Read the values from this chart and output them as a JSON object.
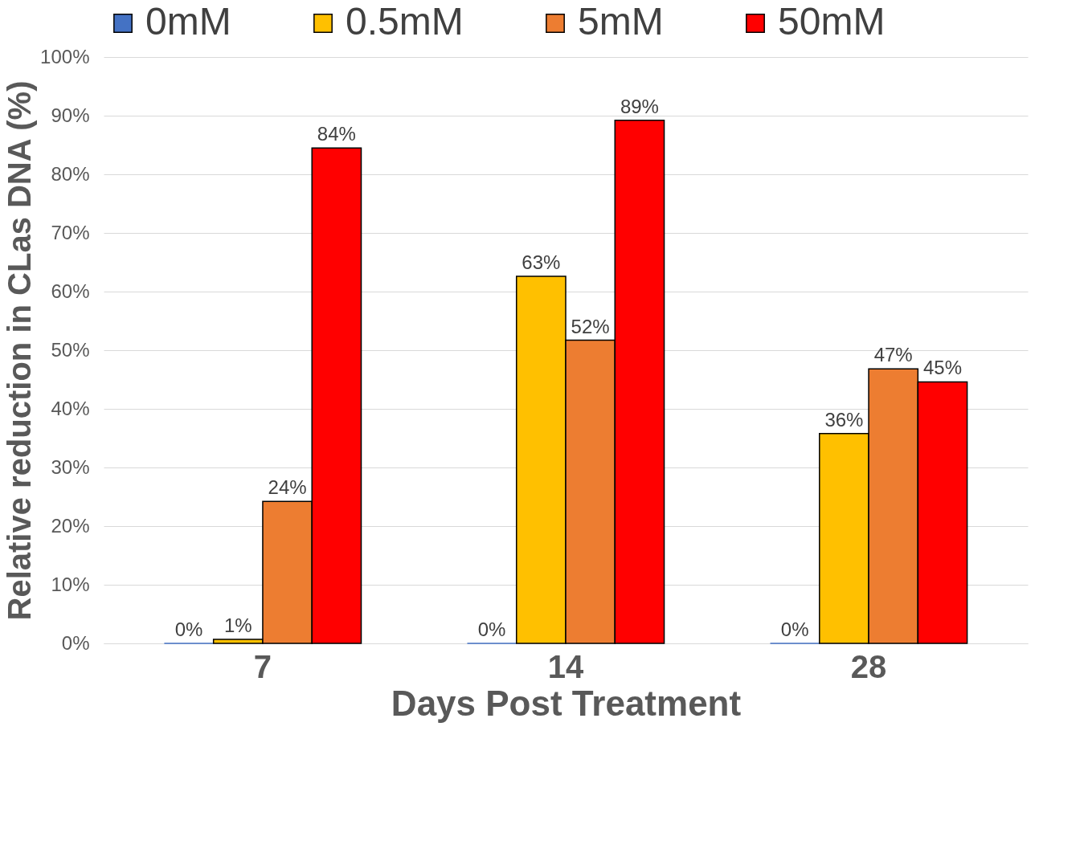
{
  "chart_data": {
    "type": "bar",
    "xlabel": "Days Post Treatment",
    "ylabel": "Relative reduction in CLas DNA (%)",
    "categories": [
      "7",
      "14",
      "28"
    ],
    "series": [
      {
        "name": "0mM",
        "color": "#4472c4",
        "values": [
          0,
          0,
          0
        ],
        "value_labels": [
          "0%",
          "0%",
          "0%"
        ]
      },
      {
        "name": "0.5mM",
        "color": "#ffc000",
        "values": [
          0.7,
          62.6,
          35.8
        ],
        "value_labels": [
          "1%",
          "63%",
          "36%"
        ]
      },
      {
        "name": "5mM",
        "color": "#ed7d31",
        "values": [
          24.2,
          51.7,
          46.8
        ],
        "value_labels": [
          "24%",
          "52%",
          "47%"
        ]
      },
      {
        "name": "50mM",
        "color": "#ff0000",
        "values": [
          84.5,
          89.2,
          44.6
        ],
        "value_labels": [
          "84%",
          "89%",
          "45%"
        ]
      }
    ],
    "ylim": [
      0,
      100
    ],
    "yticks": [
      {
        "value": 0,
        "label": "0%"
      },
      {
        "value": 10,
        "label": "10%"
      },
      {
        "value": 20,
        "label": "20%"
      },
      {
        "value": 30,
        "label": "30%"
      },
      {
        "value": 40,
        "label": "40%"
      },
      {
        "value": 50,
        "label": "50%"
      },
      {
        "value": 60,
        "label": "60%"
      },
      {
        "value": 70,
        "label": "70%"
      },
      {
        "value": 80,
        "label": "80%"
      },
      {
        "value": 90,
        "label": "90%"
      },
      {
        "value": 100,
        "label": "100%"
      }
    ],
    "grid": "y",
    "legend": "top"
  }
}
